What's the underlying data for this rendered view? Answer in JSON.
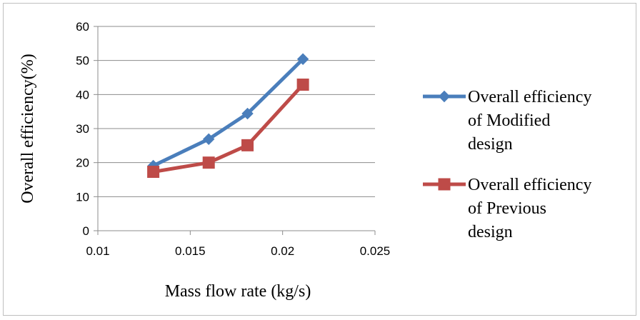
{
  "chart_data": {
    "type": "line",
    "title": "",
    "xlabel": "Mass flow rate (kg/s)",
    "ylabel": "Overall efficiency(%)",
    "xlim": [
      0.01,
      0.025
    ],
    "ylim": [
      0,
      60
    ],
    "x_ticks": [
      "0.01",
      "0.015",
      "0.02",
      "0.025"
    ],
    "y_ticks": [
      "0",
      "10",
      "20",
      "30",
      "40",
      "50",
      "60"
    ],
    "grid": true,
    "legend_position": "right",
    "series": [
      {
        "name": "Overall efficiency of Modified design",
        "legend_lines": [
          "Overall efficiency",
          "of Modified",
          "design"
        ],
        "color": "#4a7ebb",
        "marker": "diamond",
        "x": [
          0.013,
          0.016,
          0.0181,
          0.0211
        ],
        "y": [
          19.1,
          26.9,
          34.4,
          50.4
        ]
      },
      {
        "name": "Overall efficiency of Previous design",
        "legend_lines": [
          "Overall efficiency",
          "of Previous",
          "design"
        ],
        "color": "#be4b48",
        "marker": "square",
        "x": [
          0.013,
          0.016,
          0.0181,
          0.0211
        ],
        "y": [
          17.3,
          20.0,
          25.1,
          42.9
        ]
      }
    ]
  }
}
